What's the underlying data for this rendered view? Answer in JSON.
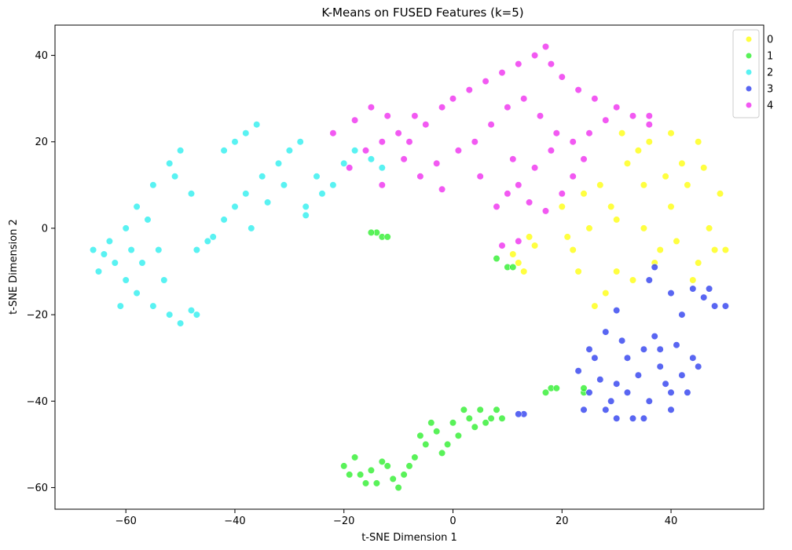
{
  "chart_data": {
    "type": "scatter",
    "title": "K-Means on FUSED Features (k=5)",
    "xlabel": "t-SNE Dimension 1",
    "ylabel": "t-SNE Dimension 2",
    "xlim": [
      -73,
      57
    ],
    "ylim": [
      -65,
      47
    ],
    "xticks": [
      -60,
      -40,
      -20,
      0,
      20,
      40
    ],
    "yticks": [
      -60,
      -40,
      -20,
      0,
      20,
      40
    ],
    "grid": false,
    "legend_position": "top-right",
    "series": [
      {
        "name": "0",
        "color": "#ffff00",
        "points": [
          [
            45,
            20
          ],
          [
            42,
            15
          ],
          [
            35,
            10
          ],
          [
            40,
            5
          ],
          [
            30,
            2
          ],
          [
            25,
            0
          ],
          [
            38,
            -5
          ],
          [
            45,
            -8
          ],
          [
            33,
            -12
          ],
          [
            28,
            -15
          ],
          [
            22,
            -5
          ],
          [
            20,
            5
          ],
          [
            27,
            10
          ],
          [
            32,
            15
          ],
          [
            36,
            20
          ],
          [
            40,
            22
          ],
          [
            43,
            10
          ],
          [
            47,
            0
          ],
          [
            48,
            -5
          ],
          [
            44,
            -12
          ],
          [
            26,
            -18
          ],
          [
            30,
            -10
          ],
          [
            24,
            8
          ],
          [
            21,
            -2
          ],
          [
            35,
            0
          ],
          [
            39,
            12
          ],
          [
            41,
            -3
          ],
          [
            29,
            5
          ],
          [
            23,
            -10
          ],
          [
            37,
            -8
          ],
          [
            12,
            -8
          ],
          [
            13,
            -10
          ],
          [
            11,
            -6
          ],
          [
            15,
            -4
          ],
          [
            14,
            -2
          ],
          [
            50,
            -5
          ],
          [
            49,
            8
          ],
          [
            46,
            14
          ],
          [
            34,
            18
          ],
          [
            31,
            22
          ]
        ]
      },
      {
        "name": "1",
        "color": "#22ee22",
        "points": [
          [
            -20,
            -55
          ],
          [
            -17,
            -57
          ],
          [
            -14,
            -59
          ],
          [
            -12,
            -55
          ],
          [
            -9,
            -57
          ],
          [
            -7,
            -53
          ],
          [
            -5,
            -50
          ],
          [
            -3,
            -47
          ],
          [
            0,
            -45
          ],
          [
            3,
            -44
          ],
          [
            5,
            -42
          ],
          [
            8,
            -42
          ],
          [
            -10,
            -60
          ],
          [
            -18,
            -53
          ],
          [
            -15,
            -56
          ],
          [
            -6,
            -48
          ],
          [
            -2,
            -52
          ],
          [
            1,
            -48
          ],
          [
            4,
            -46
          ],
          [
            7,
            -44
          ],
          [
            -8,
            -55
          ],
          [
            -11,
            -58
          ],
          [
            -4,
            -45
          ],
          [
            2,
            -42
          ],
          [
            6,
            -45
          ],
          [
            -13,
            -54
          ],
          [
            -1,
            -50
          ],
          [
            -16,
            -59
          ],
          [
            -19,
            -57
          ],
          [
            9,
            -44
          ],
          [
            -14,
            -1
          ],
          [
            -13,
            -2
          ],
          [
            -12,
            -2
          ],
          [
            -15,
            -1
          ],
          [
            8,
            -7
          ],
          [
            10,
            -9
          ],
          [
            11,
            -9
          ],
          [
            17,
            -38
          ],
          [
            18,
            -37
          ],
          [
            19,
            -37
          ],
          [
            24,
            -38
          ],
          [
            24,
            -37
          ]
        ]
      },
      {
        "name": "2",
        "color": "#22eeee",
        "points": [
          [
            -66,
            -5
          ],
          [
            -65,
            -10
          ],
          [
            -62,
            -8
          ],
          [
            -60,
            -12
          ],
          [
            -58,
            -15
          ],
          [
            -55,
            -18
          ],
          [
            -52,
            -20
          ],
          [
            -50,
            -22
          ],
          [
            -48,
            -19
          ],
          [
            -60,
            0
          ],
          [
            -58,
            5
          ],
          [
            -55,
            10
          ],
          [
            -52,
            15
          ],
          [
            -50,
            18
          ],
          [
            -56,
            2
          ],
          [
            -54,
            -5
          ],
          [
            -57,
            -8
          ],
          [
            -53,
            -12
          ],
          [
            -61,
            -18
          ],
          [
            -63,
            -3
          ],
          [
            -45,
            -3
          ],
          [
            -42,
            2
          ],
          [
            -40,
            5
          ],
          [
            -38,
            8
          ],
          [
            -35,
            12
          ],
          [
            -32,
            15
          ],
          [
            -30,
            18
          ],
          [
            -28,
            20
          ],
          [
            -25,
            12
          ],
          [
            -22,
            10
          ],
          [
            -20,
            15
          ],
          [
            -18,
            18
          ],
          [
            -15,
            16
          ],
          [
            -13,
            14
          ],
          [
            -40,
            20
          ],
          [
            -38,
            22
          ],
          [
            -36,
            24
          ],
          [
            -42,
            18
          ],
          [
            -44,
            -2
          ],
          [
            -47,
            -5
          ],
          [
            -37,
            0
          ],
          [
            -34,
            6
          ],
          [
            -31,
            10
          ],
          [
            -27,
            5
          ],
          [
            -24,
            8
          ],
          [
            -48,
            8
          ],
          [
            -51,
            12
          ],
          [
            -59,
            -5
          ],
          [
            -64,
            -6
          ],
          [
            -27,
            3
          ],
          [
            -47,
            -20
          ]
        ]
      },
      {
        "name": "3",
        "color": "#2233ee",
        "points": [
          [
            23,
            -33
          ],
          [
            25,
            -38
          ],
          [
            28,
            -42
          ],
          [
            30,
            -36
          ],
          [
            32,
            -30
          ],
          [
            35,
            -28
          ],
          [
            38,
            -32
          ],
          [
            40,
            -38
          ],
          [
            42,
            -34
          ],
          [
            44,
            -30
          ],
          [
            36,
            -40
          ],
          [
            33,
            -44
          ],
          [
            29,
            -40
          ],
          [
            26,
            -30
          ],
          [
            31,
            -26
          ],
          [
            37,
            -25
          ],
          [
            41,
            -27
          ],
          [
            39,
            -36
          ],
          [
            34,
            -34
          ],
          [
            27,
            -35
          ],
          [
            24,
            -42
          ],
          [
            30,
            -44
          ],
          [
            35,
            -44
          ],
          [
            43,
            -38
          ],
          [
            45,
            -32
          ],
          [
            28,
            -24
          ],
          [
            32,
            -38
          ],
          [
            38,
            -28
          ],
          [
            40,
            -42
          ],
          [
            25,
            -28
          ],
          [
            36,
            -12
          ],
          [
            40,
            -15
          ],
          [
            44,
            -14
          ],
          [
            46,
            -16
          ],
          [
            48,
            -18
          ],
          [
            50,
            -18
          ],
          [
            42,
            -20
          ],
          [
            47,
            -14
          ],
          [
            37,
            -9
          ],
          [
            30,
            -19
          ],
          [
            13,
            -43
          ],
          [
            12,
            -43
          ]
        ]
      },
      {
        "name": "4",
        "color": "#ee22ee",
        "points": [
          [
            -22,
            22
          ],
          [
            -18,
            25
          ],
          [
            -15,
            28
          ],
          [
            -12,
            26
          ],
          [
            -10,
            22
          ],
          [
            -8,
            20
          ],
          [
            -5,
            24
          ],
          [
            -2,
            28
          ],
          [
            0,
            30
          ],
          [
            3,
            32
          ],
          [
            6,
            34
          ],
          [
            9,
            36
          ],
          [
            12,
            38
          ],
          [
            15,
            40
          ],
          [
            18,
            38
          ],
          [
            20,
            35
          ],
          [
            23,
            32
          ],
          [
            26,
            30
          ],
          [
            30,
            28
          ],
          [
            33,
            26
          ],
          [
            36,
            24
          ],
          [
            28,
            25
          ],
          [
            25,
            22
          ],
          [
            22,
            20
          ],
          [
            18,
            18
          ],
          [
            15,
            14
          ],
          [
            12,
            10
          ],
          [
            10,
            8
          ],
          [
            8,
            5
          ],
          [
            14,
            6
          ],
          [
            17,
            4
          ],
          [
            20,
            8
          ],
          [
            22,
            12
          ],
          [
            19,
            22
          ],
          [
            16,
            26
          ],
          [
            13,
            30
          ],
          [
            10,
            28
          ],
          [
            7,
            24
          ],
          [
            4,
            20
          ],
          [
            1,
            18
          ],
          [
            -3,
            15
          ],
          [
            -6,
            12
          ],
          [
            -9,
            16
          ],
          [
            -13,
            20
          ],
          [
            -16,
            18
          ],
          [
            -19,
            14
          ],
          [
            -7,
            26
          ],
          [
            24,
            16
          ],
          [
            11,
            16
          ],
          [
            5,
            12
          ],
          [
            -2,
            9
          ],
          [
            9,
            -4
          ],
          [
            12,
            -3
          ],
          [
            17,
            42
          ],
          [
            36,
            26
          ],
          [
            -13,
            10
          ]
        ]
      }
    ]
  }
}
